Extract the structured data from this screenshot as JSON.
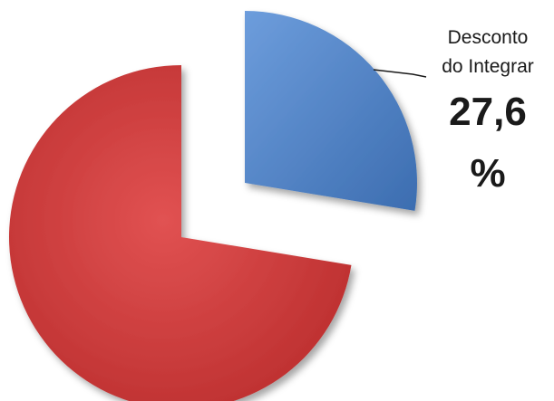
{
  "chart_data": {
    "type": "pie",
    "slices": [
      {
        "label_line1": "Desconto",
        "label_line2": "do Integrar",
        "value": 27.6,
        "value_text": "27,6",
        "unit": "%",
        "color": "#4a7fc3",
        "exploded": true
      },
      {
        "label_line1": "",
        "label_line2": "",
        "value": 72.4,
        "value_text": "",
        "unit": "",
        "color": "#cf3b3b",
        "exploded": false
      }
    ],
    "title": ""
  }
}
